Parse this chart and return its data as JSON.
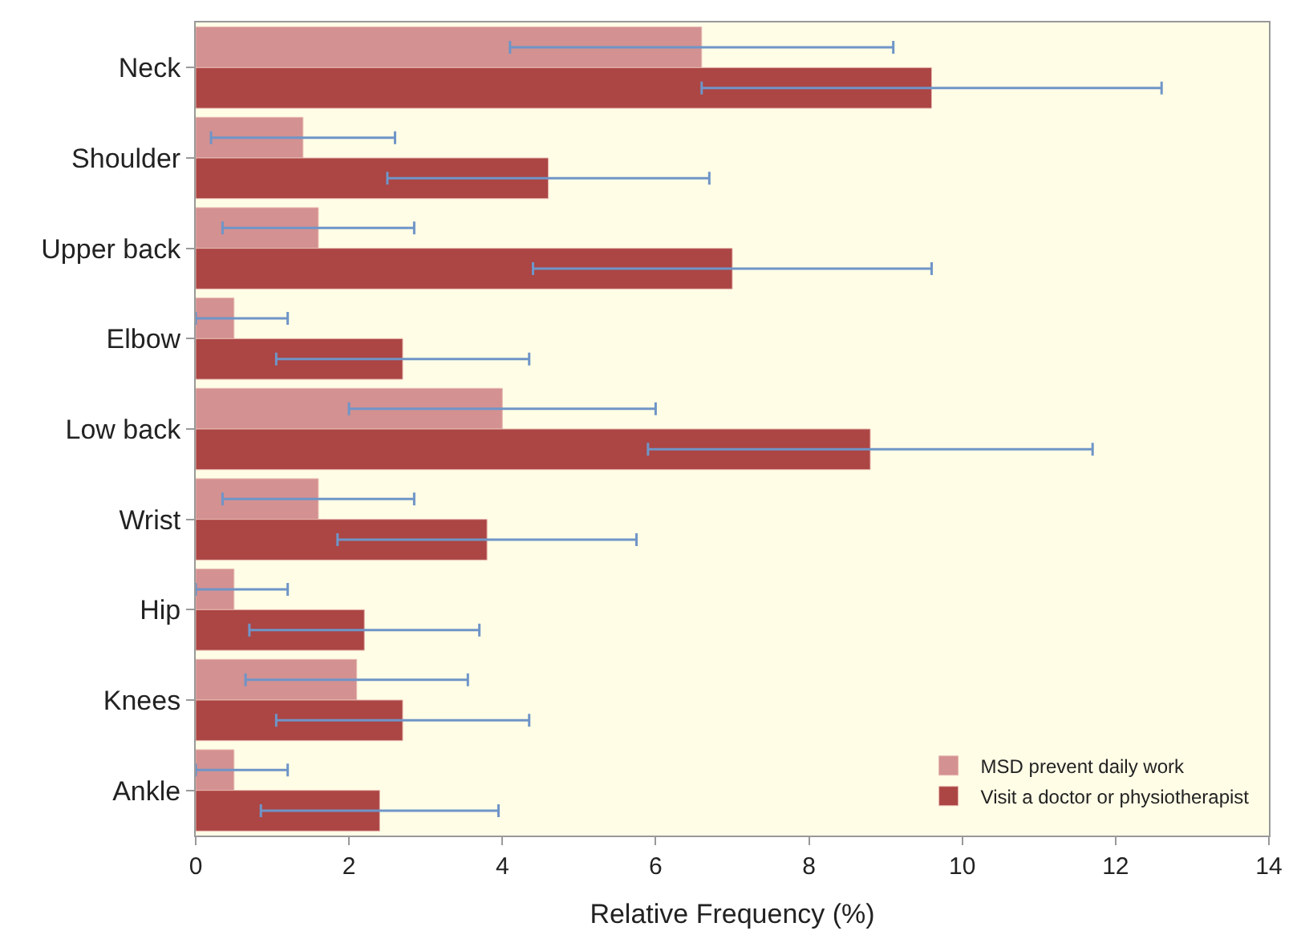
{
  "chart_data": {
    "type": "bar",
    "orientation": "horizontal",
    "xlabel": "Relative Frequency (%)",
    "categories": [
      "Neck",
      "Shoulder",
      "Upper back",
      "Elbow",
      "Low back",
      "Wrist",
      "Hip",
      "Knees",
      "Ankle"
    ],
    "series": [
      {
        "name": "MSD prevent daily work",
        "color": "#d39191",
        "values": [
          6.6,
          1.4,
          1.6,
          0.5,
          4.0,
          1.6,
          0.5,
          2.1,
          0.5
        ],
        "errors": [
          2.5,
          1.2,
          1.25,
          [
            0,
            1.2
          ],
          2.0,
          1.25,
          [
            0,
            1.2
          ],
          1.45,
          [
            0,
            1.2
          ]
        ]
      },
      {
        "name": "Visit a doctor or physiotherapist",
        "color": "#ab4644",
        "values": [
          9.6,
          4.6,
          7.0,
          2.7,
          8.8,
          3.8,
          2.2,
          2.7,
          2.4
        ],
        "errors": [
          3.0,
          2.1,
          2.6,
          1.65,
          2.9,
          1.95,
          1.5,
          1.65,
          1.55
        ]
      }
    ],
    "xlim": [
      0,
      14
    ],
    "xticks": [
      0,
      2,
      4,
      6,
      8,
      10,
      12,
      14
    ],
    "grid": false,
    "legend": "bottom right"
  }
}
